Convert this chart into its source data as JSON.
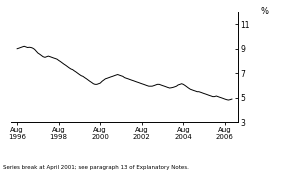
{
  "title": "",
  "ylabel": "%",
  "footnote": "Series break at April 2001; see paragraph 13 of Explanatory Notes.",
  "yticks": [
    3,
    5,
    7,
    9,
    11
  ],
  "ylim": [
    3,
    12.0
  ],
  "xlim_start": 1996.3,
  "xlim_end": 2007.2,
  "xtick_labels": [
    "Aug\n1996",
    "Aug\n1998",
    "Aug\n2000",
    "Aug\n2002",
    "Aug\n2004",
    "Aug\n2006"
  ],
  "xtick_positions": [
    1996.58,
    1998.58,
    2000.58,
    2002.58,
    2004.58,
    2006.58
  ],
  "line_color": "#000000",
  "line_width": 0.7,
  "background_color": "#ffffff",
  "series": [
    [
      1996.58,
      9.0
    ],
    [
      1996.67,
      9.05
    ],
    [
      1996.75,
      9.1
    ],
    [
      1996.83,
      9.15
    ],
    [
      1996.92,
      9.2
    ],
    [
      1997.0,
      9.15
    ],
    [
      1997.08,
      9.1
    ],
    [
      1997.17,
      9.12
    ],
    [
      1997.25,
      9.1
    ],
    [
      1997.33,
      9.05
    ],
    [
      1997.42,
      8.95
    ],
    [
      1997.5,
      8.8
    ],
    [
      1997.58,
      8.65
    ],
    [
      1997.67,
      8.55
    ],
    [
      1997.75,
      8.45
    ],
    [
      1997.83,
      8.35
    ],
    [
      1997.92,
      8.3
    ],
    [
      1998.0,
      8.35
    ],
    [
      1998.08,
      8.4
    ],
    [
      1998.17,
      8.35
    ],
    [
      1998.25,
      8.3
    ],
    [
      1998.33,
      8.25
    ],
    [
      1998.42,
      8.2
    ],
    [
      1998.5,
      8.15
    ],
    [
      1998.58,
      8.05
    ],
    [
      1998.67,
      7.95
    ],
    [
      1998.75,
      7.85
    ],
    [
      1998.83,
      7.75
    ],
    [
      1998.92,
      7.65
    ],
    [
      1999.0,
      7.55
    ],
    [
      1999.08,
      7.45
    ],
    [
      1999.17,
      7.35
    ],
    [
      1999.25,
      7.3
    ],
    [
      1999.33,
      7.2
    ],
    [
      1999.42,
      7.1
    ],
    [
      1999.5,
      7.0
    ],
    [
      1999.58,
      6.9
    ],
    [
      1999.67,
      6.8
    ],
    [
      1999.75,
      6.75
    ],
    [
      1999.83,
      6.65
    ],
    [
      1999.92,
      6.55
    ],
    [
      2000.0,
      6.45
    ],
    [
      2000.08,
      6.35
    ],
    [
      2000.17,
      6.25
    ],
    [
      2000.25,
      6.15
    ],
    [
      2000.33,
      6.1
    ],
    [
      2000.42,
      6.1
    ],
    [
      2000.5,
      6.15
    ],
    [
      2000.58,
      6.2
    ],
    [
      2000.67,
      6.35
    ],
    [
      2000.75,
      6.45
    ],
    [
      2000.83,
      6.55
    ],
    [
      2000.92,
      6.6
    ],
    [
      2001.0,
      6.65
    ],
    [
      2001.08,
      6.7
    ],
    [
      2001.17,
      6.75
    ],
    [
      2001.25,
      6.8
    ],
    [
      2001.33,
      6.85
    ],
    [
      2001.42,
      6.9
    ],
    [
      2001.5,
      6.85
    ],
    [
      2001.58,
      6.8
    ],
    [
      2001.67,
      6.75
    ],
    [
      2001.75,
      6.65
    ],
    [
      2001.83,
      6.6
    ],
    [
      2001.92,
      6.55
    ],
    [
      2002.0,
      6.5
    ],
    [
      2002.08,
      6.45
    ],
    [
      2002.17,
      6.4
    ],
    [
      2002.25,
      6.35
    ],
    [
      2002.33,
      6.3
    ],
    [
      2002.42,
      6.25
    ],
    [
      2002.5,
      6.2
    ],
    [
      2002.58,
      6.15
    ],
    [
      2002.67,
      6.1
    ],
    [
      2002.75,
      6.05
    ],
    [
      2002.83,
      6.0
    ],
    [
      2002.92,
      5.95
    ],
    [
      2003.0,
      5.95
    ],
    [
      2003.08,
      5.95
    ],
    [
      2003.17,
      6.0
    ],
    [
      2003.25,
      6.05
    ],
    [
      2003.33,
      6.1
    ],
    [
      2003.42,
      6.1
    ],
    [
      2003.5,
      6.05
    ],
    [
      2003.58,
      6.0
    ],
    [
      2003.67,
      5.95
    ],
    [
      2003.75,
      5.9
    ],
    [
      2003.83,
      5.85
    ],
    [
      2003.92,
      5.8
    ],
    [
      2004.0,
      5.82
    ],
    [
      2004.08,
      5.85
    ],
    [
      2004.17,
      5.9
    ],
    [
      2004.25,
      5.95
    ],
    [
      2004.33,
      6.05
    ],
    [
      2004.42,
      6.1
    ],
    [
      2004.5,
      6.15
    ],
    [
      2004.58,
      6.1
    ],
    [
      2004.67,
      6.0
    ],
    [
      2004.75,
      5.9
    ],
    [
      2004.83,
      5.8
    ],
    [
      2004.92,
      5.7
    ],
    [
      2005.0,
      5.65
    ],
    [
      2005.08,
      5.6
    ],
    [
      2005.17,
      5.55
    ],
    [
      2005.25,
      5.5
    ],
    [
      2005.33,
      5.5
    ],
    [
      2005.42,
      5.45
    ],
    [
      2005.5,
      5.4
    ],
    [
      2005.58,
      5.35
    ],
    [
      2005.67,
      5.3
    ],
    [
      2005.75,
      5.25
    ],
    [
      2005.83,
      5.2
    ],
    [
      2005.92,
      5.15
    ],
    [
      2006.0,
      5.1
    ],
    [
      2006.08,
      5.1
    ],
    [
      2006.17,
      5.15
    ],
    [
      2006.25,
      5.1
    ],
    [
      2006.33,
      5.05
    ],
    [
      2006.42,
      5.0
    ],
    [
      2006.5,
      4.95
    ],
    [
      2006.58,
      4.9
    ],
    [
      2006.67,
      4.85
    ],
    [
      2006.75,
      4.82
    ],
    [
      2006.83,
      4.85
    ],
    [
      2006.92,
      4.9
    ]
  ]
}
